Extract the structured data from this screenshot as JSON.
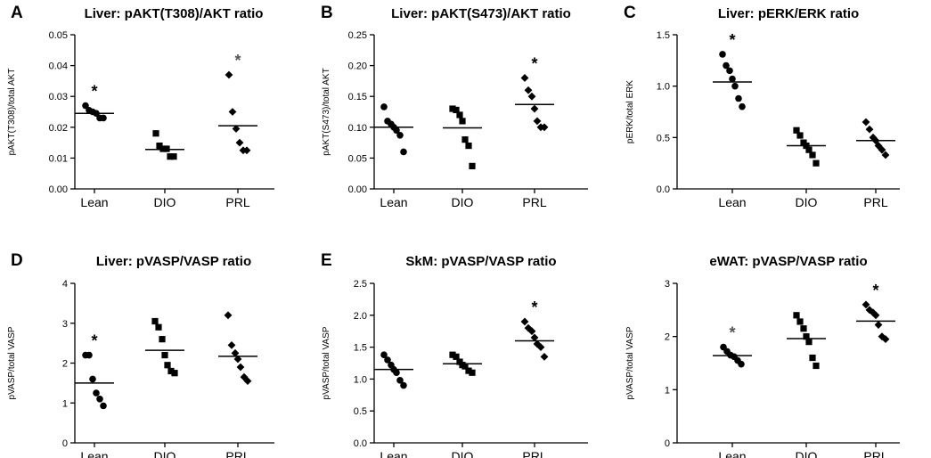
{
  "chart_data": [
    {
      "panel": "A",
      "type": "scatter",
      "title": "Liver: pAKT(T308)/AKT ratio",
      "ylabel": "pAKT(T308)/total AKT",
      "ylim": [
        0,
        0.05
      ],
      "yticks": [
        0,
        0.01,
        0.02,
        0.03,
        0.04,
        0.05
      ],
      "ytick_labels": [
        "0.00",
        "0.01",
        "0.02",
        "0.03",
        "0.04",
        "0.05"
      ],
      "categories": [
        "Lean",
        "DIO",
        "PRL"
      ],
      "markers": [
        "circle",
        "square",
        "diamond"
      ],
      "values": [
        [
          0.027,
          0.0255,
          0.025,
          0.0245,
          0.023,
          0.023
        ],
        [
          0.018,
          0.014,
          0.013,
          0.013,
          0.0105,
          0.0105
        ],
        [
          0.037,
          0.025,
          0.0195,
          0.015,
          0.0125,
          0.0125
        ]
      ],
      "means": [
        0.0245,
        0.0128,
        0.0205
      ],
      "significance": [
        "*",
        "",
        "*"
      ],
      "significance_colors": [
        "#000000",
        "#000000",
        "#555555"
      ]
    },
    {
      "panel": "B",
      "type": "scatter",
      "title": "Liver: pAKT(S473)/AKT ratio",
      "ylabel": "pAKT(S473)/total AKT",
      "ylim": [
        0,
        0.25
      ],
      "yticks": [
        0,
        0.05,
        0.1,
        0.15,
        0.2,
        0.25
      ],
      "ytick_labels": [
        "0.00",
        "0.05",
        "0.10",
        "0.15",
        "0.20",
        "0.25"
      ],
      "categories": [
        "Lean",
        "DIO",
        "PRL"
      ],
      "markers": [
        "circle",
        "square",
        "diamond"
      ],
      "values": [
        [
          0.133,
          0.11,
          0.105,
          0.1,
          0.095,
          0.087,
          0.06
        ],
        [
          0.13,
          0.128,
          0.12,
          0.11,
          0.08,
          0.07,
          0.037
        ],
        [
          0.18,
          0.16,
          0.15,
          0.13,
          0.11,
          0.1,
          0.1
        ]
      ],
      "means": [
        0.1,
        0.099,
        0.137
      ],
      "significance": [
        "",
        "",
        "*"
      ],
      "significance_colors": [
        "#000000",
        "#000000",
        "#000000"
      ]
    },
    {
      "panel": "C",
      "type": "scatter",
      "title": "Liver: pERK/ERK ratio",
      "ylabel": "pERK/total ERK",
      "ylim": [
        0,
        1.5
      ],
      "yticks": [
        0,
        0.5,
        1.0,
        1.5
      ],
      "ytick_labels": [
        "0.0",
        "0.5",
        "1.0",
        "1.5"
      ],
      "categories": [
        "Lean",
        "DIO",
        "PRL"
      ],
      "markers": [
        "circle",
        "square",
        "diamond"
      ],
      "values": [
        [
          1.31,
          1.2,
          1.15,
          1.07,
          1.0,
          0.88,
          0.8
        ],
        [
          0.57,
          0.52,
          0.45,
          0.42,
          0.38,
          0.33,
          0.25
        ],
        [
          0.65,
          0.58,
          0.5,
          0.47,
          0.42,
          0.38,
          0.33
        ]
      ],
      "means": [
        1.04,
        0.42,
        0.47
      ],
      "significance": [
        "*",
        "",
        ""
      ],
      "significance_colors": [
        "#000000",
        "#000000",
        "#000000"
      ]
    },
    {
      "panel": "D",
      "type": "scatter",
      "title": "Liver: pVASP/VASP ratio",
      "ylabel": "pVASP/total VASP",
      "ylim": [
        0,
        4
      ],
      "yticks": [
        0,
        1,
        2,
        3,
        4
      ],
      "ytick_labels": [
        "0",
        "1",
        "2",
        "3",
        "4"
      ],
      "categories": [
        "Lean",
        "DIO",
        "PRL"
      ],
      "markers": [
        "circle",
        "square",
        "diamond"
      ],
      "values": [
        [
          2.2,
          2.2,
          1.6,
          1.25,
          1.1,
          0.93
        ],
        [
          3.05,
          2.9,
          2.6,
          2.2,
          1.95,
          1.8,
          1.75
        ],
        [
          3.2,
          2.45,
          2.25,
          2.1,
          1.9,
          1.65,
          1.55
        ]
      ],
      "means": [
        1.5,
        2.32,
        2.17
      ],
      "significance": [
        "*",
        "",
        ""
      ],
      "significance_colors": [
        "#000000",
        "#000000",
        "#000000"
      ]
    },
    {
      "panel": "E",
      "type": "scatter",
      "title": "SkM: pVASP/VASP ratio",
      "ylabel": "pVASP/total VASP",
      "ylim": [
        0,
        2.5
      ],
      "yticks": [
        0,
        0.5,
        1.0,
        1.5,
        2.0,
        2.5
      ],
      "ytick_labels": [
        "0.0",
        "0.5",
        "1.0",
        "1.5",
        "2.0",
        "2.5"
      ],
      "categories": [
        "Lean",
        "DIO",
        "PRL"
      ],
      "markers": [
        "circle",
        "square",
        "diamond"
      ],
      "values": [
        [
          1.38,
          1.3,
          1.22,
          1.15,
          1.1,
          0.98,
          0.9
        ],
        [
          1.38,
          1.35,
          1.27,
          1.22,
          1.2,
          1.13,
          1.1
        ],
        [
          1.9,
          1.8,
          1.75,
          1.65,
          1.55,
          1.5,
          1.35
        ]
      ],
      "means": [
        1.15,
        1.24,
        1.6
      ],
      "significance": [
        "",
        "",
        "*"
      ],
      "significance_colors": [
        "#000000",
        "#000000",
        "#000000"
      ]
    },
    {
      "panel": "",
      "type": "scatter",
      "title": "eWAT: pVASP/VASP ratio",
      "ylabel": "pVASP/total VASP",
      "ylim": [
        0,
        3
      ],
      "yticks": [
        0,
        1,
        2,
        3
      ],
      "ytick_labels": [
        "0",
        "1",
        "2",
        "3"
      ],
      "categories": [
        "Lean",
        "DIO",
        "PRL"
      ],
      "markers": [
        "circle",
        "square",
        "diamond"
      ],
      "values": [
        [
          1.8,
          1.72,
          1.65,
          1.62,
          1.55,
          1.48
        ],
        [
          2.4,
          2.28,
          2.15,
          2.0,
          1.9,
          1.6,
          1.45
        ],
        [
          2.6,
          2.5,
          2.45,
          2.4,
          2.22,
          2.0,
          1.95
        ]
      ],
      "means": [
        1.64,
        1.96,
        2.29
      ],
      "significance": [
        "*",
        "",
        "*"
      ],
      "significance_colors": [
        "#555555",
        "#000000",
        "#000000"
      ]
    }
  ]
}
